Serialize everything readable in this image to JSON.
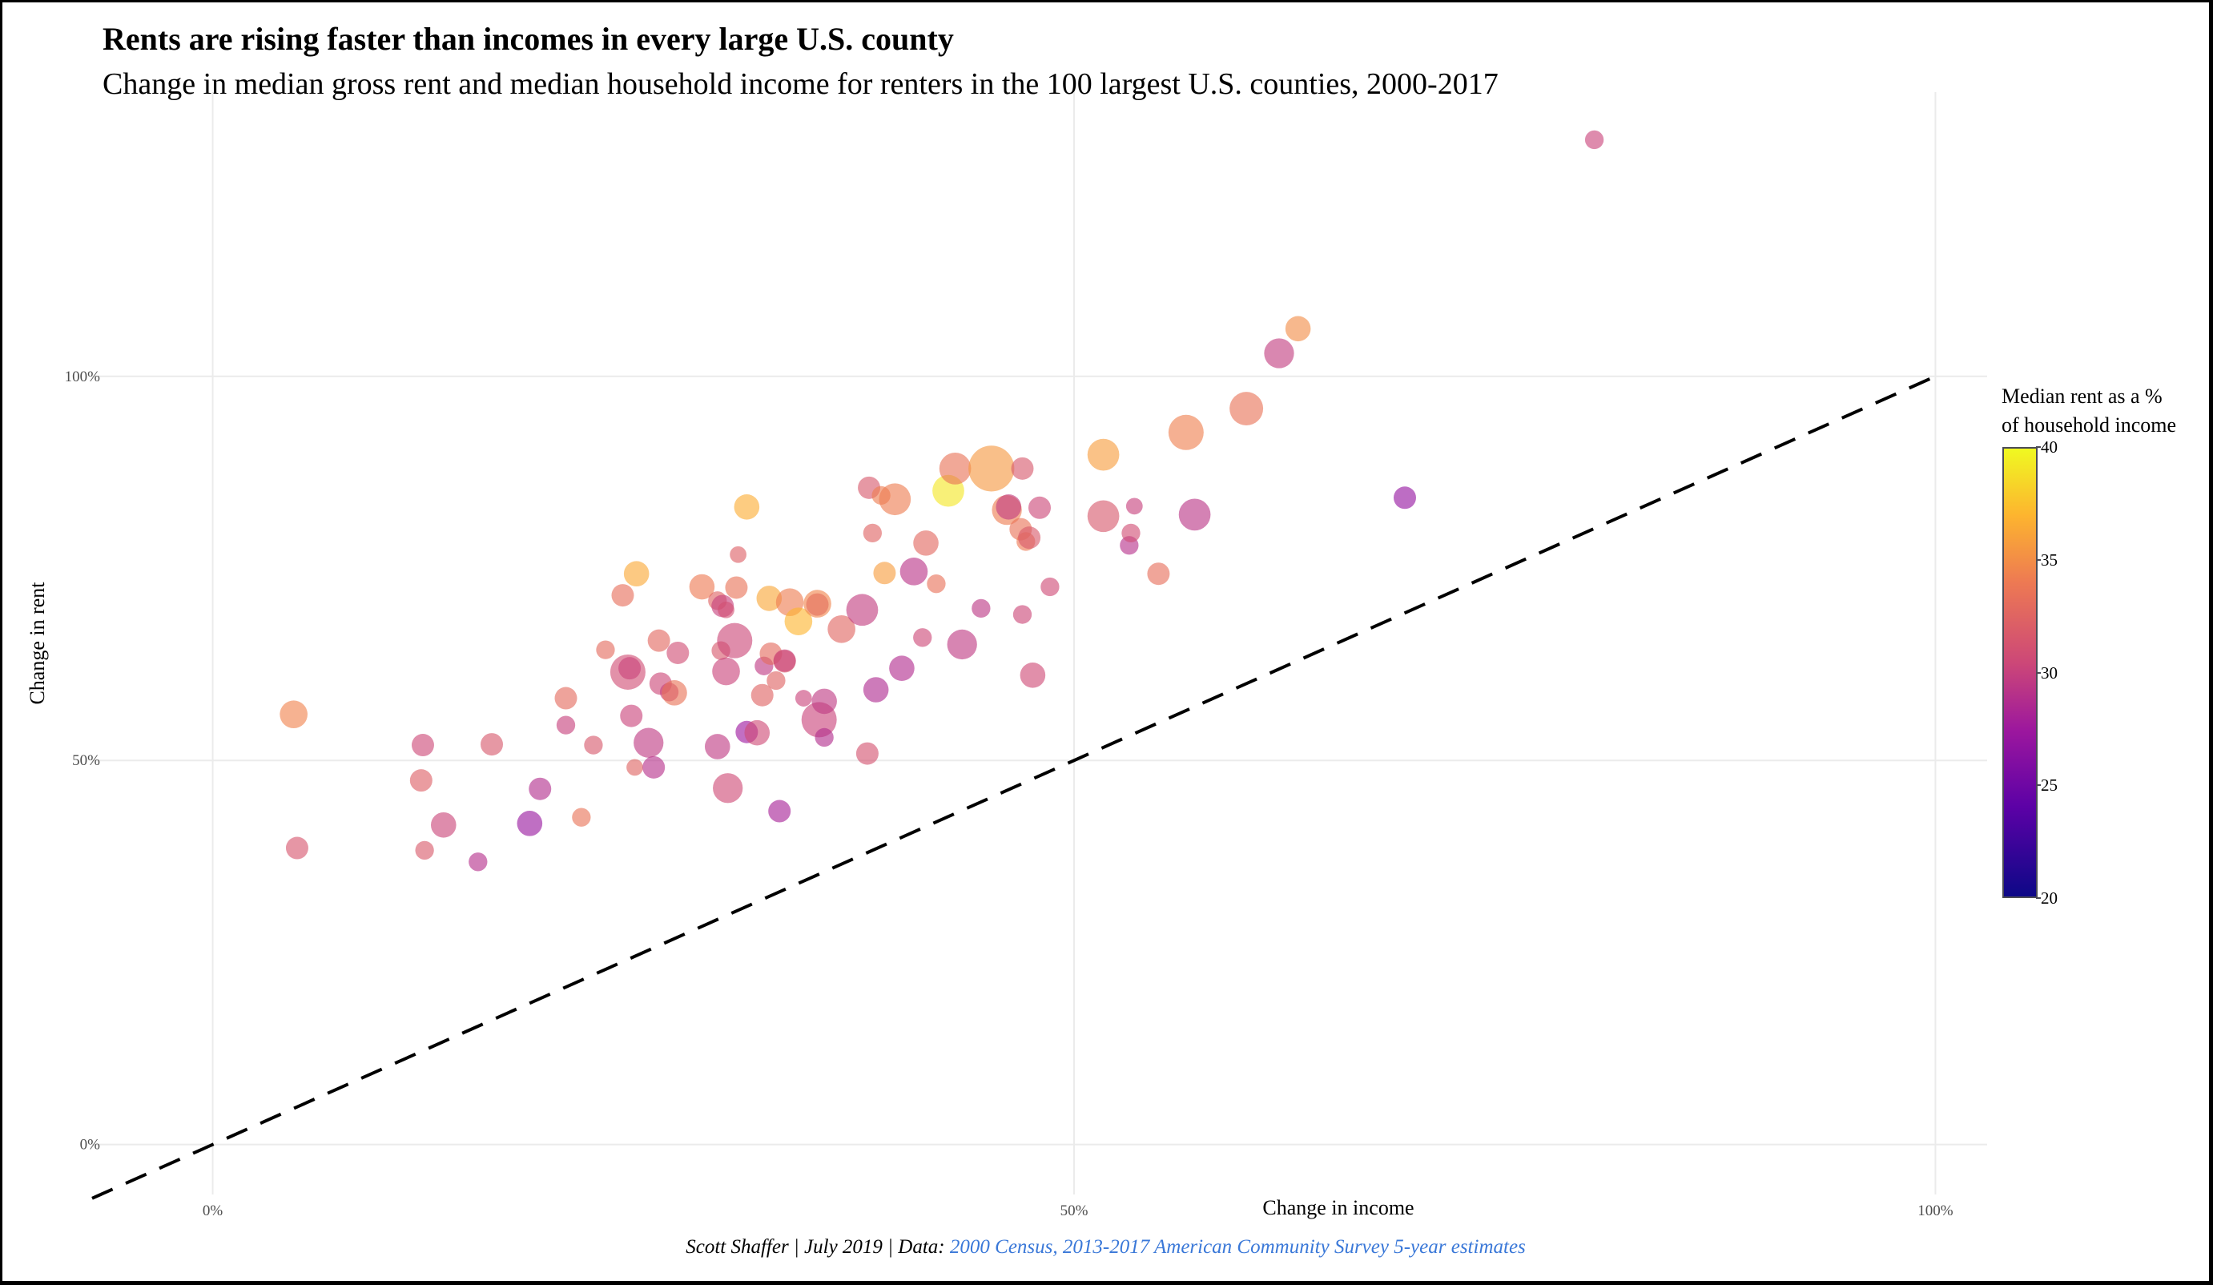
{
  "header": {
    "title": "Rents are rising faster than incomes in every large U.S. county",
    "subtitle": "Change in median gross rent and median household income for renters in the 100 largest U.S. counties, 2000-2017"
  },
  "caption": {
    "author": "Scott Shaffer | July 2019 | Data: ",
    "source": "2000 Census, 2013-2017 American Community Survey 5-year estimates",
    "source_color": "#3a78d8"
  },
  "legend": {
    "title_line1": "Median rent as a %",
    "title_line2": "of household income",
    "ticks": [
      "40",
      "35",
      "30",
      "25",
      "20"
    ],
    "range": [
      20,
      40
    ],
    "palette": "plasma"
  },
  "chart_data": {
    "type": "scatter",
    "title": "Rents are rising faster than incomes in every large U.S. county",
    "subtitle": "Change in median gross rent and median household income for renters in the 100 largest U.S. counties, 2000-2017",
    "xlabel": "Change in income",
    "ylabel": "Change in rent",
    "xlim": [
      -7,
      103
    ],
    "ylim": [
      -6.5,
      137
    ],
    "x_ticks": [
      0,
      50,
      100
    ],
    "x_tick_labels": [
      "0%",
      "50%",
      "100%"
    ],
    "y_ticks": [
      0,
      50,
      100
    ],
    "y_tick_labels": [
      "0%",
      "50%",
      "100%"
    ],
    "grid": true,
    "reference_line": {
      "type": "y = x",
      "style": "dashed",
      "color": "#000000"
    },
    "color_variable": "Median rent as a % of household income",
    "color_range": [
      20,
      40
    ],
    "legend_position": "right",
    "size_note": "point size reflects county size (relative)",
    "points": [
      {
        "x": 4.7,
        "y": 56.0,
        "c": 34.5,
        "s": 2
      },
      {
        "x": 4.9,
        "y": 38.6,
        "c": 31.5,
        "s": 1
      },
      {
        "x": 12.1,
        "y": 47.4,
        "c": 32.2,
        "s": 1
      },
      {
        "x": 12.2,
        "y": 52.0,
        "c": 30.5,
        "s": 1
      },
      {
        "x": 12.3,
        "y": 38.3,
        "c": 31.8,
        "s": 0.5
      },
      {
        "x": 13.4,
        "y": 41.6,
        "c": 30.3,
        "s": 1.5
      },
      {
        "x": 15.4,
        "y": 36.8,
        "c": 28.9,
        "s": 0.5
      },
      {
        "x": 16.2,
        "y": 52.1,
        "c": 31.6,
        "s": 1
      },
      {
        "x": 18.4,
        "y": 41.8,
        "c": 27.2,
        "s": 1.5
      },
      {
        "x": 19.0,
        "y": 46.3,
        "c": 28.8,
        "s": 1
      },
      {
        "x": 20.5,
        "y": 54.6,
        "c": 30.0,
        "s": 0.5
      },
      {
        "x": 20.5,
        "y": 58.1,
        "c": 32.9,
        "s": 1
      },
      {
        "x": 21.4,
        "y": 42.6,
        "c": 33.6,
        "s": 0.5
      },
      {
        "x": 22.1,
        "y": 52.0,
        "c": 31.6,
        "s": 0.5
      },
      {
        "x": 22.8,
        "y": 64.4,
        "c": 33.0,
        "s": 0.5
      },
      {
        "x": 23.8,
        "y": 71.5,
        "c": 33.2,
        "s": 1
      },
      {
        "x": 24.1,
        "y": 61.5,
        "c": 30.8,
        "s": 4
      },
      {
        "x": 24.2,
        "y": 62.0,
        "c": 30.2,
        "s": 1
      },
      {
        "x": 24.3,
        "y": 55.8,
        "c": 30.2,
        "s": 1
      },
      {
        "x": 24.5,
        "y": 49.1,
        "c": 32.5,
        "s": 0.3
      },
      {
        "x": 24.6,
        "y": 74.3,
        "c": 36.4,
        "s": 1.5
      },
      {
        "x": 25.3,
        "y": 52.3,
        "c": 29.6,
        "s": 2.5
      },
      {
        "x": 25.6,
        "y": 49.1,
        "c": 29.0,
        "s": 1
      },
      {
        "x": 25.9,
        "y": 65.6,
        "c": 32.8,
        "s": 1
      },
      {
        "x": 26.0,
        "y": 60.0,
        "c": 30.4,
        "s": 1
      },
      {
        "x": 26.5,
        "y": 58.9,
        "c": 30.0,
        "s": 0.5
      },
      {
        "x": 26.8,
        "y": 58.8,
        "c": 33.6,
        "s": 1.5
      },
      {
        "x": 27.0,
        "y": 64.0,
        "c": 30.8,
        "s": 1
      },
      {
        "x": 28.4,
        "y": 72.6,
        "c": 34.0,
        "s": 1.5
      },
      {
        "x": 29.3,
        "y": 51.8,
        "c": 29.6,
        "s": 1.5
      },
      {
        "x": 29.3,
        "y": 70.8,
        "c": 32.4,
        "s": 0.5
      },
      {
        "x": 29.5,
        "y": 64.3,
        "c": 31.6,
        "s": 0.5
      },
      {
        "x": 29.6,
        "y": 70.1,
        "c": 30.0,
        "s": 1
      },
      {
        "x": 29.8,
        "y": 69.6,
        "c": 31.0,
        "s": 0.3
      },
      {
        "x": 29.8,
        "y": 61.6,
        "c": 30.2,
        "s": 2
      },
      {
        "x": 29.9,
        "y": 46.4,
        "c": 30.6,
        "s": 2.5
      },
      {
        "x": 30.3,
        "y": 65.6,
        "c": 30.4,
        "s": 4
      },
      {
        "x": 30.4,
        "y": 72.5,
        "c": 33.6,
        "s": 1
      },
      {
        "x": 30.5,
        "y": 76.8,
        "c": 32.2,
        "s": 0.3
      },
      {
        "x": 31.0,
        "y": 83.0,
        "c": 36.6,
        "s": 1.5
      },
      {
        "x": 31.0,
        "y": 53.7,
        "c": 27.4,
        "s": 1
      },
      {
        "x": 31.6,
        "y": 53.6,
        "c": 30.6,
        "s": 1.5
      },
      {
        "x": 31.9,
        "y": 58.5,
        "c": 32.4,
        "s": 1
      },
      {
        "x": 32.0,
        "y": 62.3,
        "c": 29.5,
        "s": 0.5
      },
      {
        "x": 32.3,
        "y": 71.1,
        "c": 36.3,
        "s": 1.5
      },
      {
        "x": 32.4,
        "y": 63.9,
        "c": 33.0,
        "s": 1
      },
      {
        "x": 32.7,
        "y": 60.4,
        "c": 32.4,
        "s": 0.5
      },
      {
        "x": 32.9,
        "y": 43.4,
        "c": 28.0,
        "s": 1
      },
      {
        "x": 33.2,
        "y": 62.9,
        "c": 31.8,
        "s": 1
      },
      {
        "x": 33.2,
        "y": 63.0,
        "c": 30.2,
        "s": 1
      },
      {
        "x": 33.5,
        "y": 70.6,
        "c": 34.2,
        "s": 2
      },
      {
        "x": 34.0,
        "y": 68.1,
        "c": 37.0,
        "s": 2
      },
      {
        "x": 34.3,
        "y": 58.1,
        "c": 30.2,
        "s": 0.3
      },
      {
        "x": 35.1,
        "y": 70.3,
        "c": 31.0,
        "s": 1
      },
      {
        "x": 35.1,
        "y": 70.4,
        "c": 34.6,
        "s": 2
      },
      {
        "x": 35.2,
        "y": 55.3,
        "c": 30.2,
        "s": 4
      },
      {
        "x": 35.5,
        "y": 57.7,
        "c": 29.6,
        "s": 1.5
      },
      {
        "x": 35.5,
        "y": 53.0,
        "c": 28.8,
        "s": 0.5
      },
      {
        "x": 36.5,
        "y": 67.1,
        "c": 32.6,
        "s": 2
      },
      {
        "x": 37.7,
        "y": 69.6,
        "c": 29.8,
        "s": 3
      },
      {
        "x": 38.0,
        "y": 50.9,
        "c": 31.2,
        "s": 1
      },
      {
        "x": 38.1,
        "y": 85.5,
        "c": 31.6,
        "s": 1
      },
      {
        "x": 38.3,
        "y": 79.6,
        "c": 32.4,
        "s": 0.5
      },
      {
        "x": 38.5,
        "y": 59.2,
        "c": 28.6,
        "s": 1.5
      },
      {
        "x": 38.8,
        "y": 84.5,
        "c": 34.2,
        "s": 0.5
      },
      {
        "x": 39.0,
        "y": 74.4,
        "c": 35.8,
        "s": 1
      },
      {
        "x": 39.6,
        "y": 84.0,
        "c": 34.2,
        "s": 3
      },
      {
        "x": 40.0,
        "y": 62.0,
        "c": 28.7,
        "s": 1.5
      },
      {
        "x": 40.7,
        "y": 74.6,
        "c": 29.2,
        "s": 2
      },
      {
        "x": 41.2,
        "y": 66.0,
        "c": 30.5,
        "s": 0.5
      },
      {
        "x": 41.4,
        "y": 78.3,
        "c": 32.8,
        "s": 1.5
      },
      {
        "x": 42.0,
        "y": 73.0,
        "c": 33.4,
        "s": 0.5
      },
      {
        "x": 42.7,
        "y": 85.1,
        "c": 39.2,
        "s": 3
      },
      {
        "x": 43.1,
        "y": 88.0,
        "c": 33.6,
        "s": 3
      },
      {
        "x": 43.5,
        "y": 65.1,
        "c": 29.6,
        "s": 2.5
      },
      {
        "x": 44.6,
        "y": 69.8,
        "c": 29.4,
        "s": 0.5
      },
      {
        "x": 45.2,
        "y": 88.0,
        "c": 35.6,
        "s": 8
      },
      {
        "x": 46.1,
        "y": 82.6,
        "c": 34.2,
        "s": 2.5
      },
      {
        "x": 46.2,
        "y": 83.0,
        "c": 29.8,
        "s": 1.5
      },
      {
        "x": 46.9,
        "y": 80.1,
        "c": 33.6,
        "s": 1
      },
      {
        "x": 47.0,
        "y": 88.0,
        "c": 31.6,
        "s": 1
      },
      {
        "x": 47.0,
        "y": 69.0,
        "c": 30.4,
        "s": 0.5
      },
      {
        "x": 47.2,
        "y": 78.5,
        "c": 34.0,
        "s": 0.5
      },
      {
        "x": 47.4,
        "y": 79.0,
        "c": 31.8,
        "s": 1
      },
      {
        "x": 47.6,
        "y": 61.1,
        "c": 30.6,
        "s": 1.5
      },
      {
        "x": 48.0,
        "y": 82.9,
        "c": 30.4,
        "s": 1
      },
      {
        "x": 48.6,
        "y": 72.6,
        "c": 30.6,
        "s": 0.5
      },
      {
        "x": 51.7,
        "y": 89.8,
        "c": 35.8,
        "s": 3
      },
      {
        "x": 51.7,
        "y": 81.8,
        "c": 31.6,
        "s": 3
      },
      {
        "x": 53.2,
        "y": 78.0,
        "c": 29.0,
        "s": 0.5
      },
      {
        "x": 53.3,
        "y": 79.6,
        "c": 30.8,
        "s": 0.5
      },
      {
        "x": 53.5,
        "y": 83.1,
        "c": 30.0,
        "s": 0.3
      },
      {
        "x": 54.9,
        "y": 74.3,
        "c": 33.2,
        "s": 1
      },
      {
        "x": 56.5,
        "y": 92.7,
        "c": 34.3,
        "s": 4
      },
      {
        "x": 57.0,
        "y": 82.0,
        "c": 29.3,
        "s": 3
      },
      {
        "x": 60.0,
        "y": 95.8,
        "c": 33.6,
        "s": 3.5
      },
      {
        "x": 61.9,
        "y": 103.0,
        "c": 29.8,
        "s": 2.5
      },
      {
        "x": 63.0,
        "y": 106.2,
        "c": 35.0,
        "s": 1.5
      },
      {
        "x": 69.2,
        "y": 84.2,
        "c": 27.0,
        "s": 1
      },
      {
        "x": 80.2,
        "y": 130.8,
        "c": 30.2,
        "s": 0.5
      }
    ]
  }
}
